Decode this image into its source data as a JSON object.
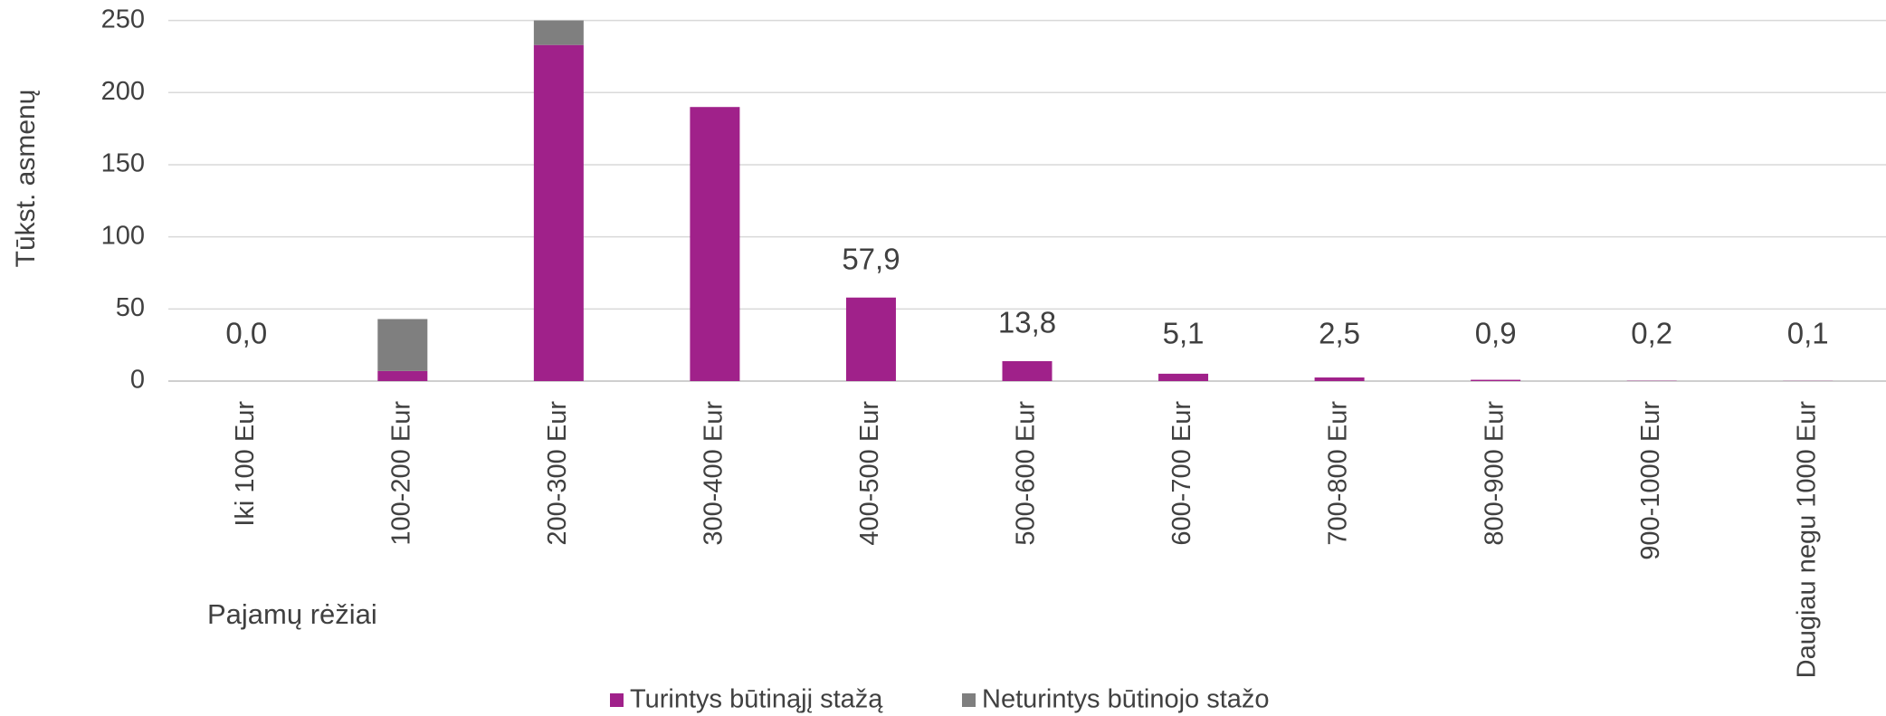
{
  "chart_data": {
    "type": "bar",
    "stacked": true,
    "x_label": "Pajamų rėžiai",
    "y_label": "Tūkst. asmenų",
    "categories": [
      "Iki 100 Eur",
      "100-200 Eur",
      "200-300 Eur",
      "300-400 Eur",
      "400-500 Eur",
      "500-600 Eur",
      "600-700 Eur",
      "700-800 Eur",
      "800-900 Eur",
      "900-1000 Eur",
      "Daugiau negu 1000 Eur"
    ],
    "series": [
      {
        "name": "Turintys būtinąjį stažą",
        "color": "#a0218a",
        "values": [
          0,
          7,
          233,
          190,
          57.9,
          13.8,
          5.1,
          2.5,
          0.9,
          0.2,
          0.1
        ],
        "value_labels": [
          "0,0",
          null,
          null,
          null,
          "57,9",
          "13,8",
          "5,1",
          "2,5",
          "0,9",
          "0,2",
          "0,1"
        ]
      },
      {
        "name": "Neturintys būtinojo stažo",
        "color": "#7f7f7f",
        "values": [
          0,
          36,
          17,
          0,
          0,
          0,
          0,
          0,
          0,
          0,
          0
        ]
      }
    ],
    "ylim": [
      0,
      250
    ],
    "yticks": [
      0,
      50,
      100,
      150,
      200,
      250
    ],
    "grid": true,
    "legend": "bottom"
  }
}
